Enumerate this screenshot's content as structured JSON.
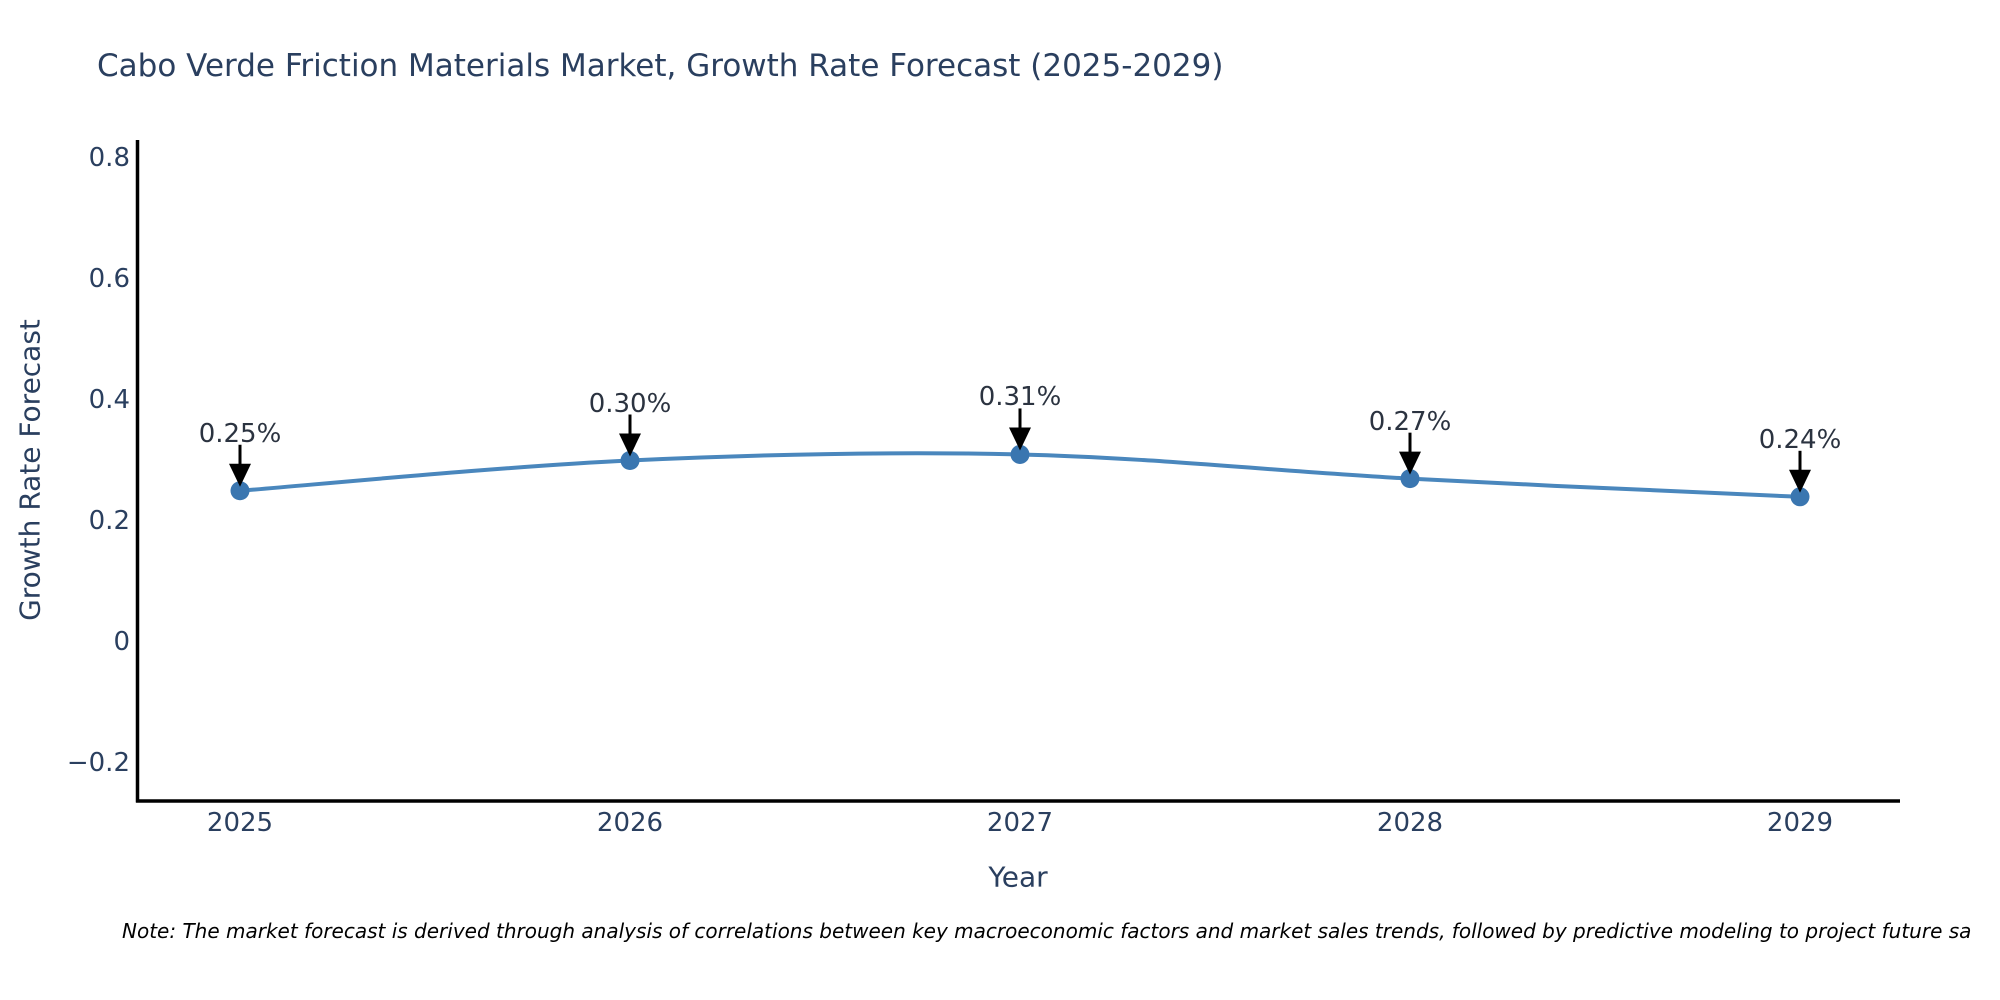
{
  "title": "Cabo Verde Friction Materials Market, Growth Rate Forecast (2025-2029)",
  "note": "Note: The market forecast is derived through analysis of correlations between key macroeconomic factors and market sales trends, followed by predictive modeling to project future sa",
  "chart_data": {
    "type": "line",
    "x": [
      2025,
      2026,
      2027,
      2028,
      2029
    ],
    "categories": [
      "2025",
      "2026",
      "2027",
      "2028",
      "2029"
    ],
    "series": [
      {
        "name": "Growth Rate Forecast",
        "values": [
          0.25,
          0.3,
          0.31,
          0.27,
          0.24
        ]
      }
    ],
    "point_labels": [
      "0.25%",
      "0.30%",
      "0.31%",
      "0.27%",
      "0.24%"
    ],
    "title": "Cabo Verde Friction Materials Market, Growth Rate Forecast (2025-2029)",
    "xlabel": "Year",
    "ylabel": "Growth Rate Forecast",
    "y_ticks": [
      0.8,
      0.6,
      0.4,
      0.2,
      0,
      -0.2
    ],
    "y_tick_labels": [
      "0.8",
      "0.6",
      "0.4",
      "0.2",
      "0",
      "−0.2"
    ],
    "ylim": [
      -0.27,
      0.83
    ],
    "grid": false,
    "legend": "none",
    "line_shape": "spline",
    "annotation_arrows": "down",
    "colors": {
      "line": "#4a87bd",
      "marker": "#3a76b0",
      "arrow": "#000000",
      "axis": "#000000",
      "chart_text": "#2a3f5f",
      "annotation_text": "#2b3340",
      "note_text": "#000000",
      "background": "#ffffff"
    }
  }
}
